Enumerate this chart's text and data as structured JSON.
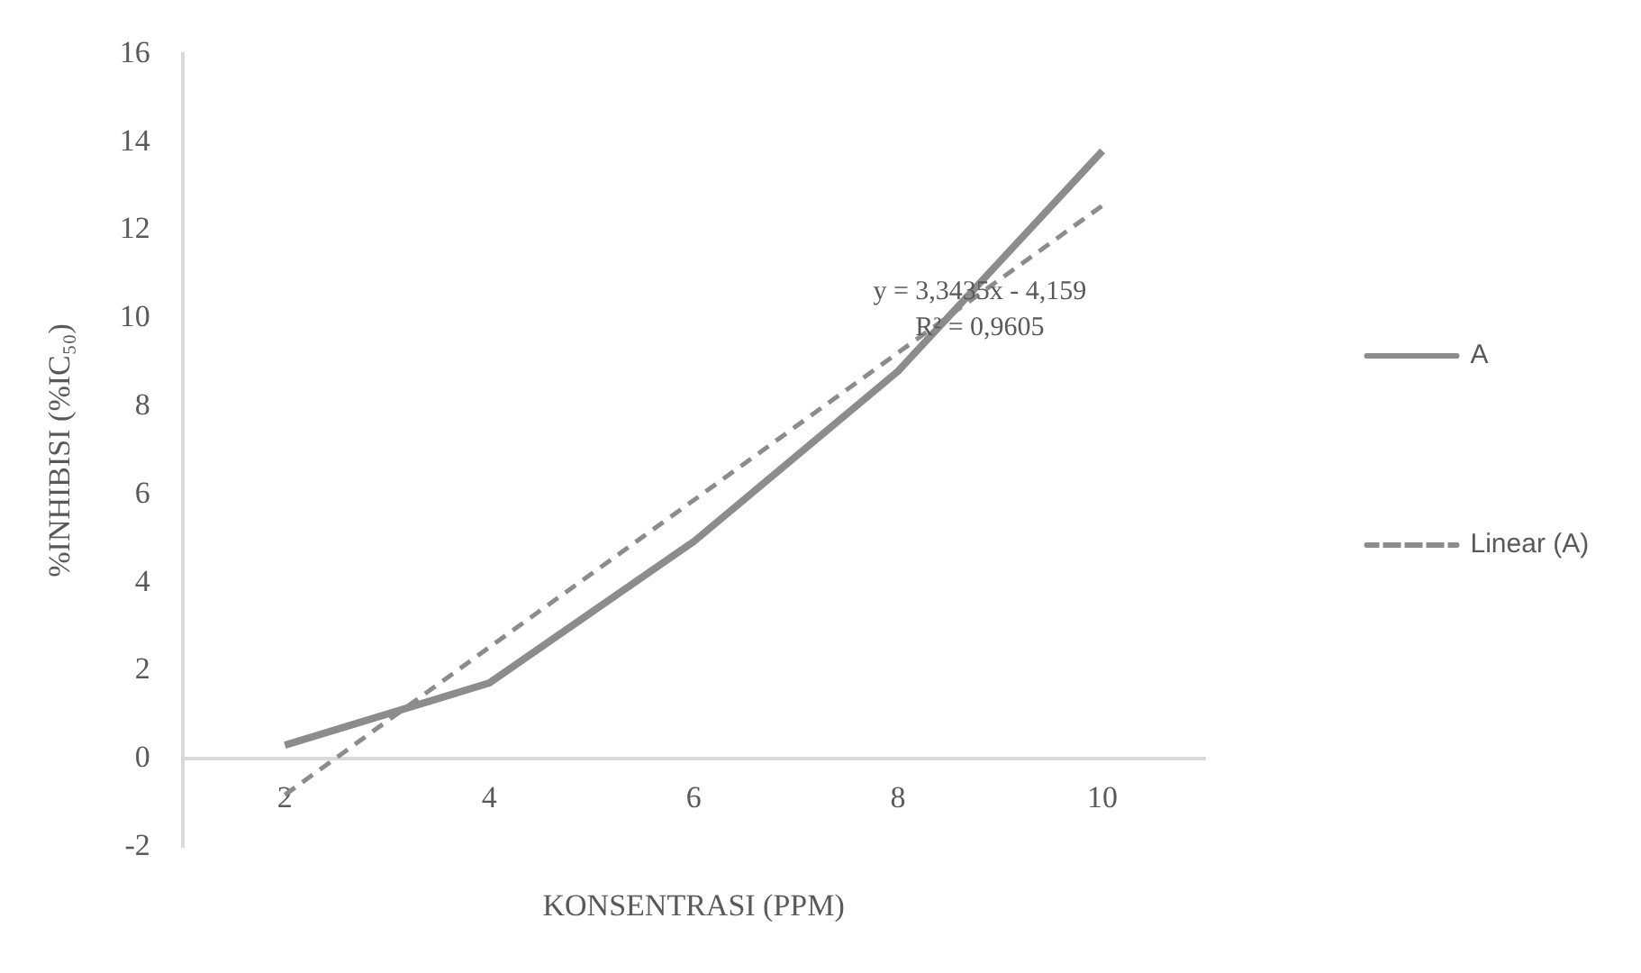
{
  "chart_data": {
    "type": "line",
    "xlabel": "KONSENTRASI (PPM)",
    "ylabel": "%INHIBISI (%IC₅₀)",
    "categories": [
      "2",
      "4",
      "6",
      "8",
      "10"
    ],
    "series": [
      {
        "name": "A",
        "color": "#8c8c8c",
        "values": [
          0.31,
          1.72,
          4.93,
          8.8,
          13.8
        ],
        "line_style": "solid"
      },
      {
        "name": "Linear (A)",
        "color": "#8c8c8c",
        "values": [
          -0.82,
          2.53,
          5.87,
          9.22,
          12.56
        ],
        "line_style": "dashed"
      }
    ],
    "ylim": [
      -2,
      16
    ],
    "yticks": [
      -2,
      0,
      2,
      4,
      6,
      8,
      10,
      12,
      14,
      16
    ],
    "grid": false,
    "legend": "right",
    "marker": "none",
    "annotations": [
      "y = 3,3435x - 4,159",
      "R² = 0,9605"
    ]
  }
}
